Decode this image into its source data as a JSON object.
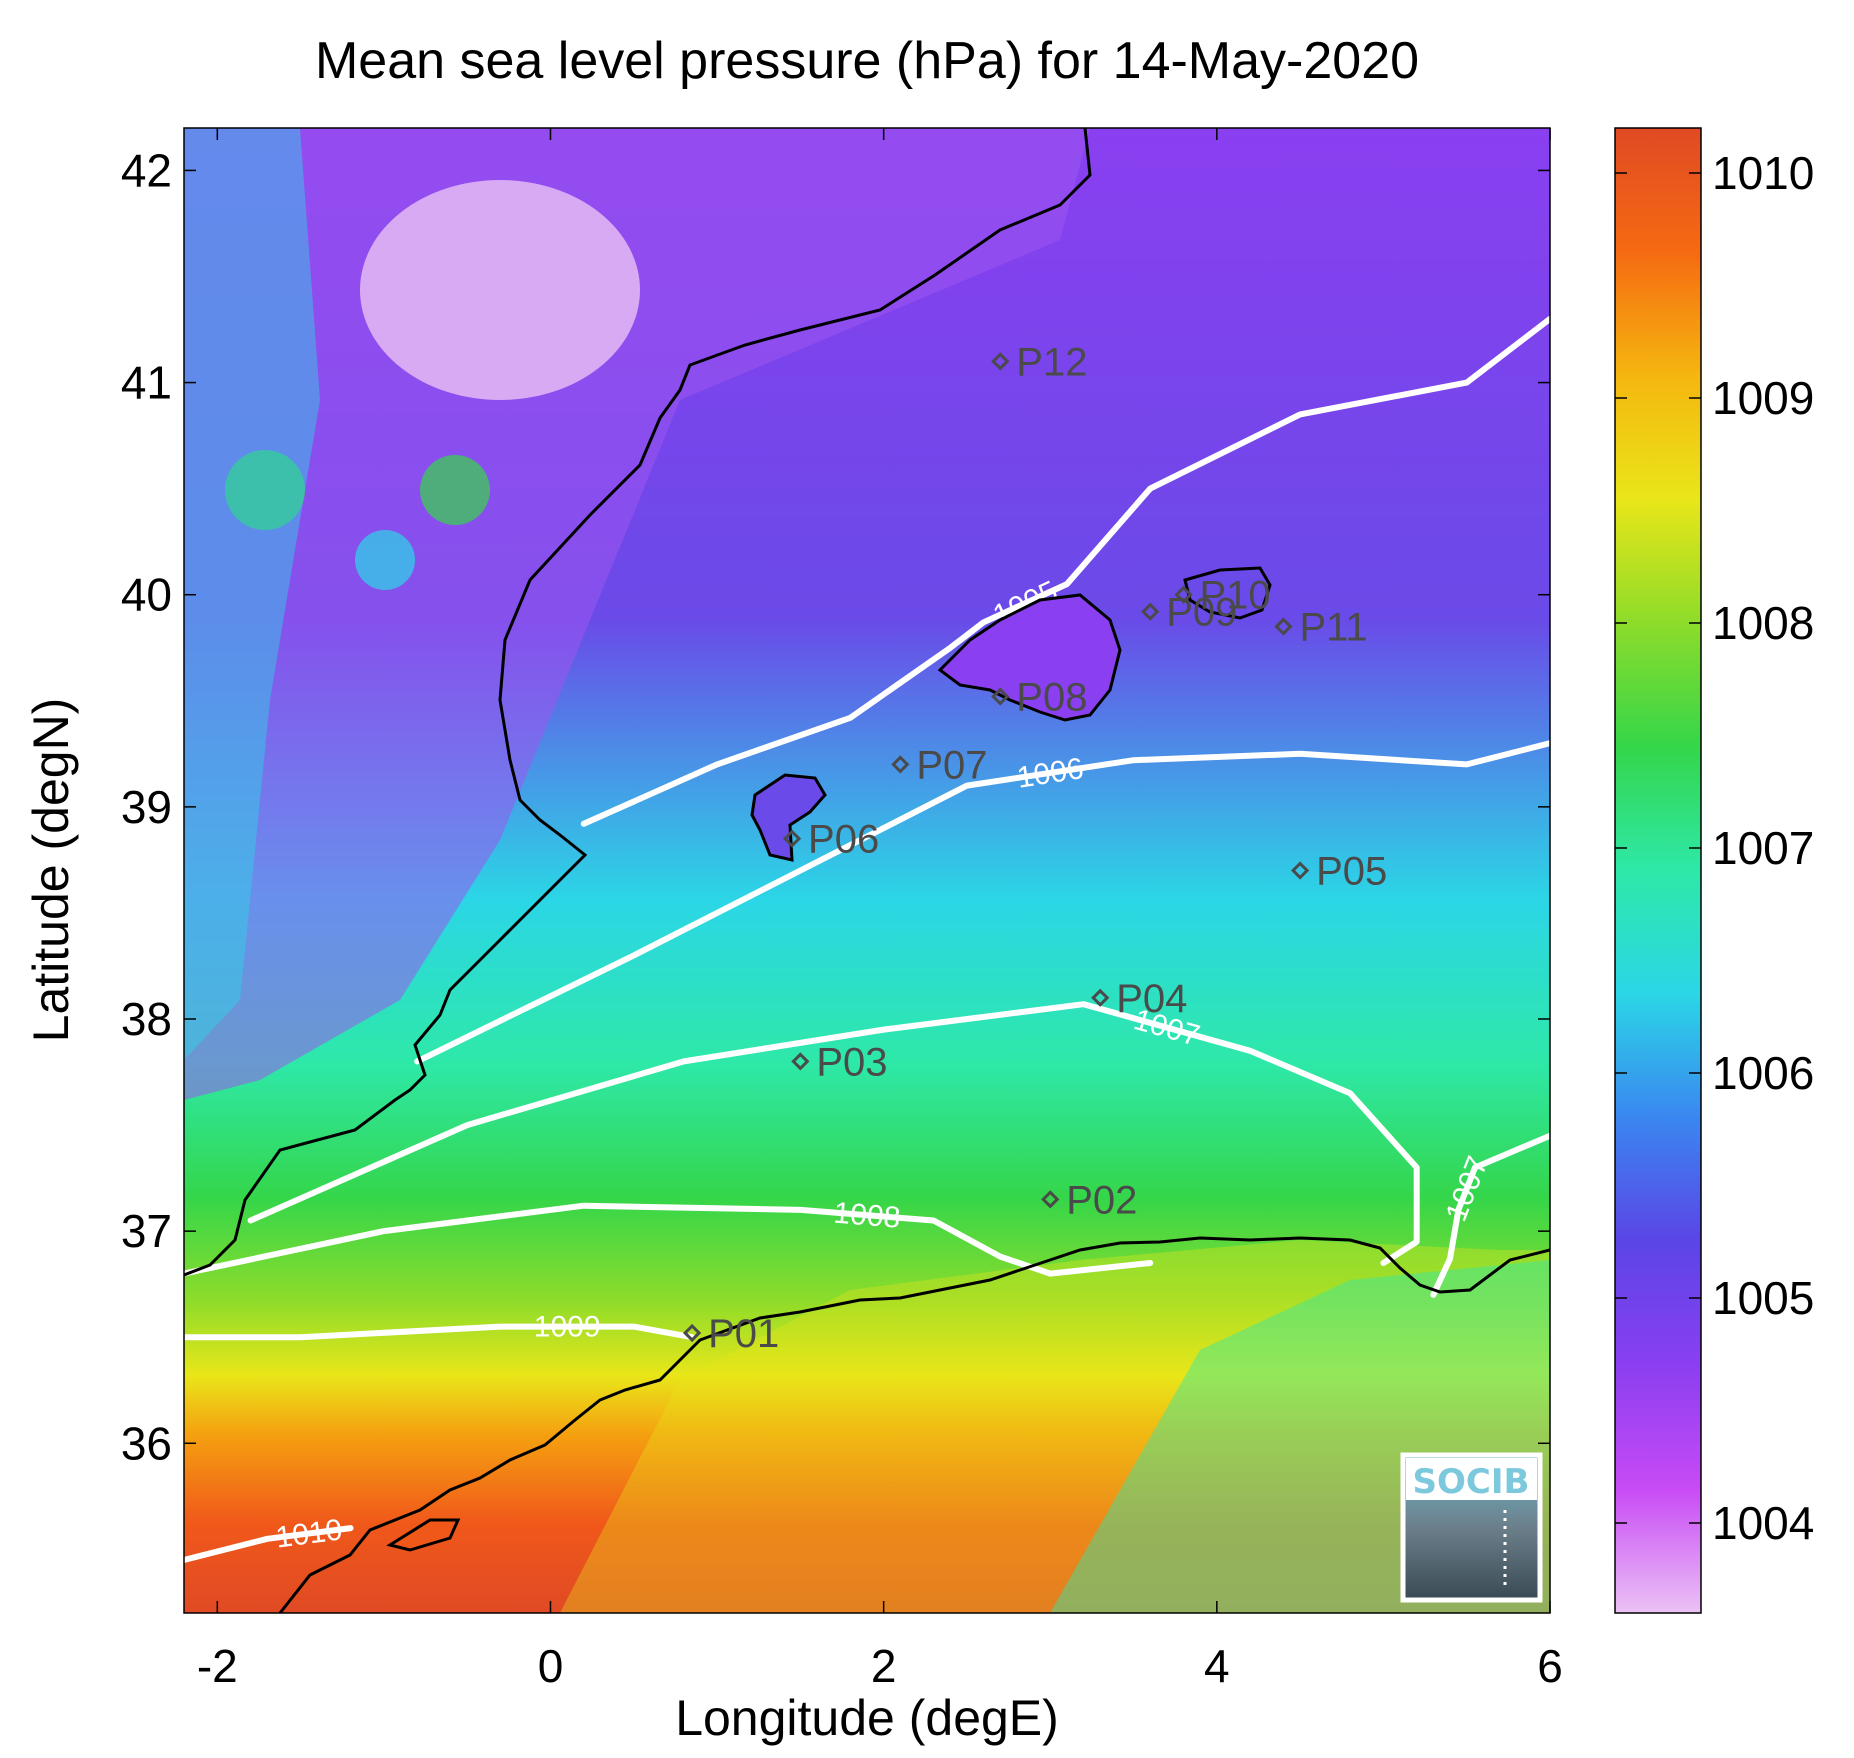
{
  "chart_data": {
    "type": "heatmap",
    "title": "Mean sea level pressure (hPa) for 14-May-2020",
    "xlabel": "Longitude (degE)",
    "ylabel": "Latitude (degN)",
    "xlim": [
      -2.2,
      6.0
    ],
    "ylim": [
      35.2,
      42.2
    ],
    "x_ticks": [
      -2,
      0,
      2,
      4,
      6
    ],
    "x_tick_labels": [
      "-2",
      "0",
      "2",
      "4",
      "6"
    ],
    "y_ticks": [
      36,
      37,
      38,
      39,
      40,
      41,
      42
    ],
    "y_tick_labels": [
      "36",
      "37",
      "38",
      "39",
      "40",
      "41",
      "42"
    ],
    "colorbar": {
      "range": [
        1003.6,
        1010.2
      ],
      "ticks": [
        1004,
        1005,
        1006,
        1007,
        1008,
        1009,
        1010
      ],
      "tick_labels": [
        "1004",
        "1005",
        "1006",
        "1007",
        "1008",
        "1009",
        "1010"
      ],
      "colormap": [
        "#ebc2f5",
        "#c84bf5",
        "#8a3ff0",
        "#5b45e6",
        "#3a86f0",
        "#2bd6e6",
        "#2ee8a8",
        "#34d64a",
        "#8edc2a",
        "#e9e619",
        "#f5b60f",
        "#f56a12",
        "#e04a24"
      ]
    },
    "contours": [
      {
        "label": "1005",
        "points": [
          [
            0.2,
            38.92
          ],
          [
            1.0,
            39.2
          ],
          [
            1.8,
            39.42
          ],
          [
            2.4,
            39.75
          ],
          [
            2.6,
            39.87
          ],
          [
            3.1,
            40.05
          ],
          [
            3.6,
            40.5
          ],
          [
            4.5,
            40.85
          ],
          [
            5.5,
            41.0
          ],
          [
            6.0,
            41.3
          ]
        ]
      },
      {
        "label": "1006",
        "points": [
          [
            -0.8,
            37.8
          ],
          [
            0.5,
            38.3
          ],
          [
            1.5,
            38.7
          ],
          [
            2.5,
            39.1
          ],
          [
            3.5,
            39.22
          ],
          [
            4.5,
            39.25
          ],
          [
            5.5,
            39.2
          ],
          [
            6.0,
            39.3
          ]
        ]
      },
      {
        "label": "1007",
        "points": [
          [
            -1.8,
            37.05
          ],
          [
            -0.5,
            37.5
          ],
          [
            0.8,
            37.8
          ],
          [
            2.0,
            37.95
          ],
          [
            3.2,
            38.07
          ],
          [
            4.2,
            37.85
          ],
          [
            4.8,
            37.65
          ],
          [
            5.2,
            37.3
          ],
          [
            5.2,
            36.95
          ],
          [
            5.0,
            36.85
          ]
        ]
      },
      {
        "label": "1007",
        "points": [
          [
            5.3,
            36.7
          ],
          [
            5.4,
            36.87
          ],
          [
            5.45,
            37.1
          ],
          [
            5.55,
            37.3
          ],
          [
            6.0,
            37.45
          ]
        ]
      },
      {
        "label": "1008",
        "points": [
          [
            -2.2,
            36.8
          ],
          [
            -1.0,
            37.0
          ],
          [
            0.2,
            37.12
          ],
          [
            1.5,
            37.1
          ],
          [
            2.3,
            37.05
          ],
          [
            2.7,
            36.88
          ],
          [
            3.0,
            36.8
          ],
          [
            3.6,
            36.85
          ]
        ]
      },
      {
        "label": "1009",
        "points": [
          [
            -2.2,
            36.5
          ],
          [
            -1.5,
            36.5
          ],
          [
            -0.3,
            36.55
          ],
          [
            0.5,
            36.55
          ],
          [
            0.85,
            36.5
          ]
        ]
      },
      {
        "label": "1010",
        "points": [
          [
            -2.2,
            35.45
          ],
          [
            -1.7,
            35.55
          ],
          [
            -1.2,
            35.6
          ]
        ]
      }
    ],
    "stations": [
      {
        "name": "P01",
        "lon": 0.85,
        "lat": 36.52
      },
      {
        "name": "P02",
        "lon": 3.0,
        "lat": 37.15
      },
      {
        "name": "P03",
        "lon": 1.5,
        "lat": 37.8
      },
      {
        "name": "P04",
        "lon": 3.3,
        "lat": 38.1
      },
      {
        "name": "P05",
        "lon": 4.5,
        "lat": 38.7
      },
      {
        "name": "P06",
        "lon": 1.45,
        "lat": 38.85
      },
      {
        "name": "P07",
        "lon": 2.1,
        "lat": 39.2
      },
      {
        "name": "P08",
        "lon": 2.7,
        "lat": 39.52
      },
      {
        "name": "P09",
        "lon": 3.6,
        "lat": 39.92
      },
      {
        "name": "P10",
        "lon": 3.8,
        "lat": 40.0
      },
      {
        "name": "P11",
        "lon": 4.4,
        "lat": 39.85
      },
      {
        "name": "P12",
        "lon": 2.7,
        "lat": 41.1
      }
    ]
  },
  "logo": {
    "text": "SOCIB"
  }
}
